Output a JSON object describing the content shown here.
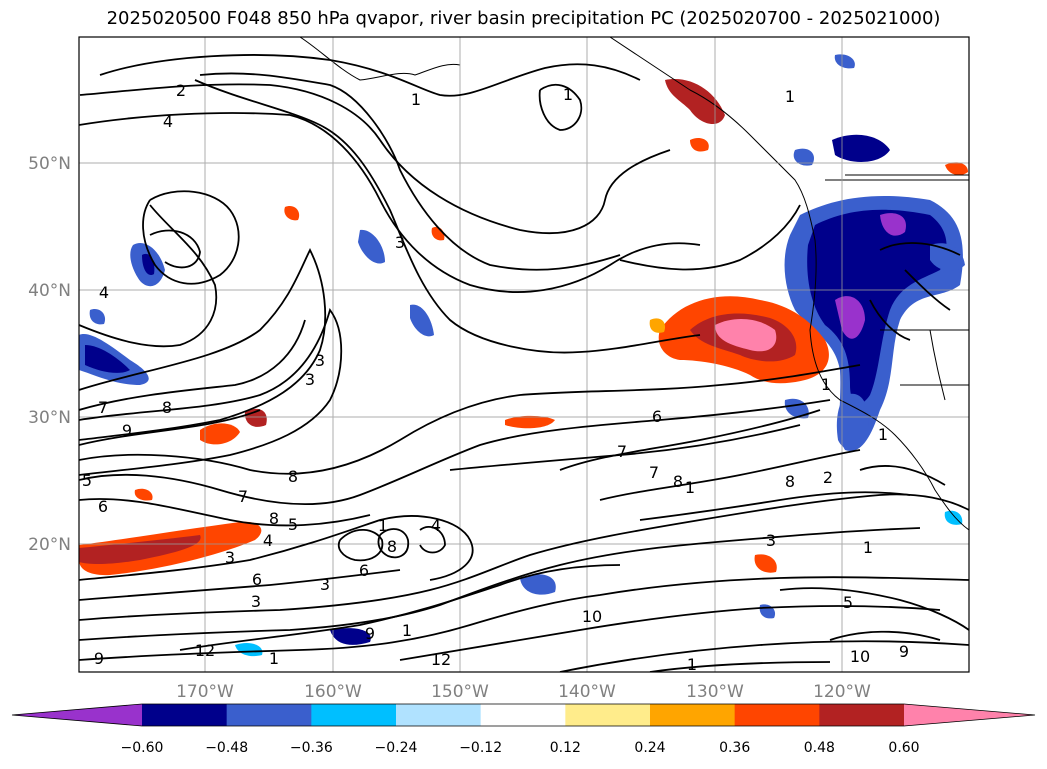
{
  "title": "2025020500 F048 850 hPa qvapor, river basin precipitation PC (2025020700 - 2025021000)",
  "chart_data": {
    "type": "heatmap",
    "lat_ticks": [
      "50°N",
      "40°N",
      "30°N",
      "20°N"
    ],
    "lon_ticks": [
      "170°W",
      "160°W",
      "150°W",
      "140°W",
      "130°W",
      "120°W"
    ],
    "tick_label_color": "#808080",
    "grid": true,
    "colorbar": {
      "orientation": "horizontal",
      "extend": "both",
      "tick_labels": [
        "−0.60",
        "−0.48",
        "−0.36",
        "−0.24",
        "−0.12",
        "0.12",
        "0.24",
        "0.36",
        "0.48",
        "0.60"
      ],
      "colors": [
        "#9932CC",
        "#00008B",
        "#3A5FCD",
        "#00BFFF",
        "#B0E2FF",
        "#FFFFFF",
        "#FFEC8B",
        "#FFA500",
        "#FF4500",
        "#B22222",
        "#FF82AB"
      ]
    },
    "contour_labels": [
      "1",
      "2",
      "4",
      "1",
      "1",
      "3",
      "3",
      "4",
      "3",
      "6",
      "7",
      "8",
      "9",
      "5",
      "8",
      "7",
      "8",
      "6",
      "4",
      "3",
      "8",
      "6",
      "3",
      "5",
      "6",
      "3",
      "1",
      "7",
      "8",
      "7",
      "1",
      "4",
      "1",
      "3",
      "5",
      "2",
      "8",
      "10",
      "9",
      "12",
      "1",
      "12",
      "1",
      "9",
      "10",
      "9",
      "1",
      "1",
      "1"
    ]
  }
}
